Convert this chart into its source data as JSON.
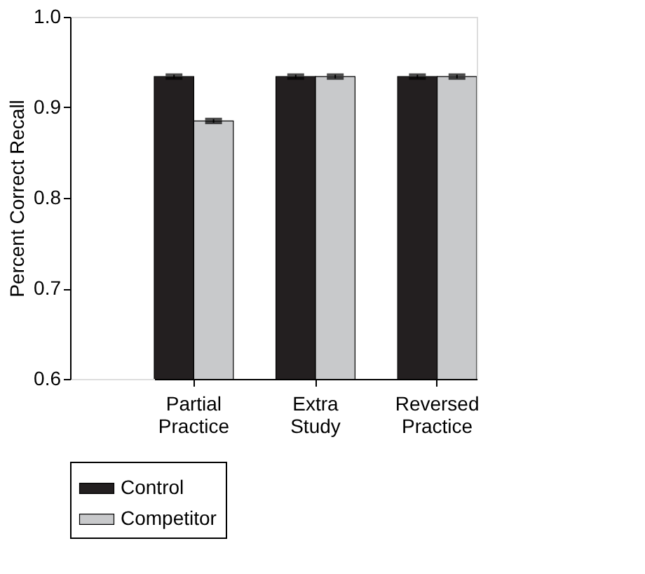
{
  "chart_data": {
    "type": "bar",
    "categories": [
      "Partial\nPractice",
      "Extra\nStudy",
      "Reversed\nPractice"
    ],
    "series": [
      {
        "name": "Control",
        "color": "#231f20",
        "values": [
          0.934,
          0.934,
          0.934
        ],
        "errors": [
          0.002,
          0.002,
          0.002
        ]
      },
      {
        "name": "Competitor",
        "color": "#c8c9cb",
        "values": [
          0.885,
          0.934,
          0.934
        ],
        "errors": [
          0.002,
          0.002,
          0.002
        ]
      }
    ],
    "ylabel": "Percent Correct Recall",
    "ylim": [
      0.6,
      1.0
    ],
    "yticks": [
      {
        "value": 0.6,
        "label": "0.6"
      },
      {
        "value": 0.7,
        "label": "0.7"
      },
      {
        "value": 0.8,
        "label": "0.8"
      },
      {
        "value": 0.9,
        "label": "0.9"
      },
      {
        "value": 1.0,
        "label": "1.0"
      }
    ],
    "grid": false,
    "legend": "bottom"
  }
}
